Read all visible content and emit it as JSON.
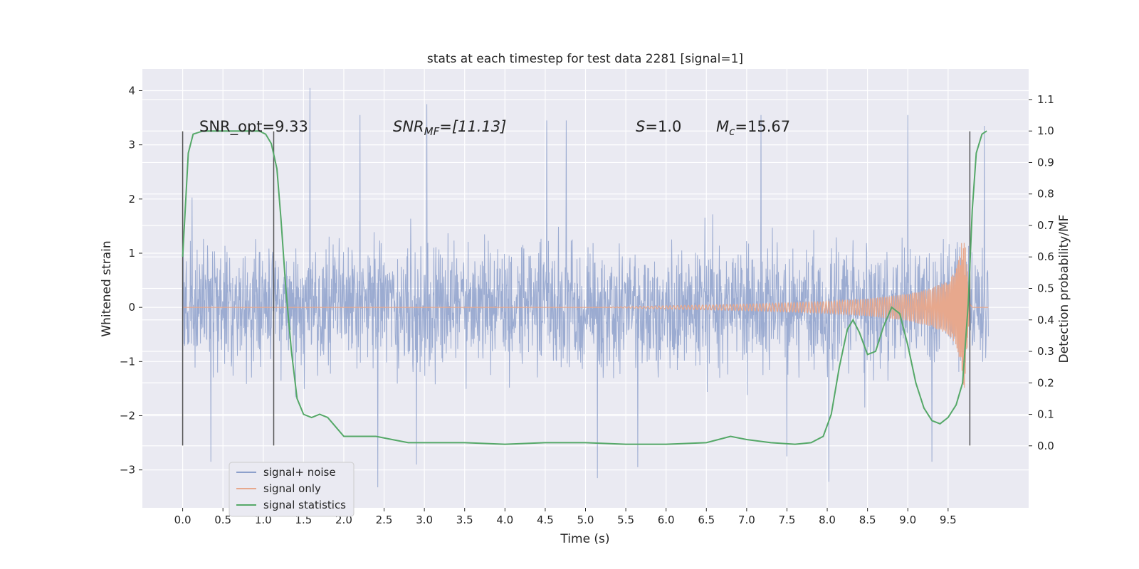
{
  "chart_data": {
    "type": "line",
    "title": "stats at each timestep for test data 2281 [signal=1]",
    "xlabel": "Time (s)",
    "ylabel": "Whitened strain",
    "y2label": "Detection probability/MF",
    "xlim": [
      -0.5,
      10.5
    ],
    "ylim": [
      -3.7,
      4.4
    ],
    "y2lim": [
      -0.197,
      1.197
    ],
    "xticks": [
      0.0,
      0.5,
      1.0,
      1.5,
      2.0,
      2.5,
      3.0,
      3.5,
      4.0,
      4.5,
      5.0,
      5.5,
      6.0,
      6.5,
      7.0,
      7.5,
      8.0,
      8.5,
      9.0,
      9.5
    ],
    "xtick_labels": [
      "0.0",
      "0.5",
      "1.0",
      "1.5",
      "2.0",
      "2.5",
      "3.0",
      "3.5",
      "4.0",
      "4.5",
      "5.0",
      "5.5",
      "6.0",
      "6.5",
      "7.0",
      "7.5",
      "8.0",
      "8.5",
      "9.0",
      "9.5"
    ],
    "yticks": [
      -3,
      -2,
      -1,
      0,
      1,
      2,
      3,
      4
    ],
    "ytick_labels": [
      "−3",
      "−2",
      "−1",
      "0",
      "1",
      "2",
      "3",
      "4"
    ],
    "y2ticks": [
      0.0,
      0.1,
      0.2,
      0.3,
      0.4,
      0.5,
      0.6,
      0.7,
      0.8,
      0.9,
      1.0,
      1.1
    ],
    "y2tick_labels": [
      "0.0",
      "0.1",
      "0.2",
      "0.3",
      "0.4",
      "0.5",
      "0.6",
      "0.7",
      "0.8",
      "0.9",
      "1.0",
      "1.1"
    ],
    "grid": true,
    "legend": {
      "placement": "lower-left",
      "entries": [
        {
          "label": "signal+ noise",
          "color": "#8da0cb"
        },
        {
          "label": "signal only",
          "color": "#e7a88d"
        },
        {
          "label": "signal statistics",
          "color": "#55a868"
        }
      ]
    },
    "annotations": [
      {
        "name": "snr-opt",
        "x": 0.2,
        "y": 3.3,
        "text": "SNR_opt=9.33"
      },
      {
        "name": "snr-mf",
        "x": 2.6,
        "y": 3.3,
        "text_prefix": "SNR",
        "text_sub": "MF",
        "text_suffix": "=[11.13]"
      },
      {
        "name": "s-value",
        "x": 5.6,
        "y": 3.3,
        "text_prefix": "S",
        "text_suffix": "=1.0"
      },
      {
        "name": "mc-value",
        "x": 6.6,
        "y": 3.3,
        "text_prefix": "M",
        "text_sub": "c",
        "text_suffix": "=15.67"
      }
    ],
    "vlines": [
      {
        "x": 0.0,
        "ymin": -2.55,
        "ymax": 3.25
      },
      {
        "x": 1.13,
        "ymin": -2.55,
        "ymax": 3.25
      },
      {
        "x": 9.77,
        "ymin": -2.55,
        "ymax": 3.25
      }
    ],
    "series": [
      {
        "name": "signal+ noise",
        "color": "#8da0cb",
        "axis": "left",
        "x_range": [
          0.0,
          10.0
        ],
        "typical_range": [
          -1.8,
          1.8
        ],
        "peaks": [
          {
            "x": 1.58,
            "y": 4.05
          },
          {
            "x": 3.03,
            "y": 3.75
          },
          {
            "x": 2.2,
            "y": 3.55
          },
          {
            "x": 9.0,
            "y": 3.55
          },
          {
            "x": 7.18,
            "y": 3.55
          },
          {
            "x": 9.95,
            "y": 3.35
          },
          {
            "x": 4.52,
            "y": 3.45
          },
          {
            "x": 4.76,
            "y": 3.45
          },
          {
            "x": 2.42,
            "y": -3.32
          },
          {
            "x": 8.02,
            "y": -3.22
          },
          {
            "x": 5.15,
            "y": -3.15
          },
          {
            "x": 0.35,
            "y": -2.85
          },
          {
            "x": 2.9,
            "y": -2.9
          },
          {
            "x": 5.65,
            "y": -2.95
          },
          {
            "x": 9.3,
            "y": -2.85
          },
          {
            "x": 7.5,
            "y": -2.75
          }
        ]
      },
      {
        "name": "signal only",
        "color": "#e7a88d",
        "axis": "left",
        "x_range": [
          0.0,
          10.0
        ],
        "amplitude_profile": [
          {
            "x": 0.0,
            "amp": 0.0
          },
          {
            "x": 5.2,
            "amp": 0.0
          },
          {
            "x": 6.0,
            "amp": 0.03
          },
          {
            "x": 7.0,
            "amp": 0.06
          },
          {
            "x": 8.0,
            "amp": 0.11
          },
          {
            "x": 8.5,
            "amp": 0.16
          },
          {
            "x": 9.0,
            "amp": 0.25
          },
          {
            "x": 9.3,
            "amp": 0.36
          },
          {
            "x": 9.5,
            "amp": 0.5
          },
          {
            "x": 9.6,
            "amp": 0.7
          },
          {
            "x": 9.65,
            "amp": 1.0
          },
          {
            "x": 9.7,
            "amp": 1.6
          },
          {
            "x": 9.76,
            "amp": 0.2
          },
          {
            "x": 9.8,
            "amp": 0.0
          },
          {
            "x": 10.0,
            "amp": 0.0
          }
        ]
      },
      {
        "name": "signal statistics",
        "color": "#55a868",
        "axis": "right",
        "x": [
          0.0,
          0.07,
          0.13,
          0.25,
          0.4,
          0.6,
          0.8,
          0.95,
          1.03,
          1.1,
          1.17,
          1.22,
          1.28,
          1.35,
          1.42,
          1.5,
          1.6,
          1.7,
          1.8,
          1.9,
          2.0,
          2.2,
          2.4,
          2.6,
          2.8,
          3.0,
          3.5,
          4.0,
          4.5,
          5.0,
          5.5,
          6.0,
          6.5,
          6.8,
          7.0,
          7.3,
          7.6,
          7.8,
          7.95,
          8.05,
          8.15,
          8.25,
          8.32,
          8.4,
          8.5,
          8.6,
          8.7,
          8.8,
          8.9,
          9.0,
          9.1,
          9.2,
          9.3,
          9.4,
          9.5,
          9.6,
          9.68,
          9.75,
          9.8,
          9.85,
          9.92,
          9.98
        ],
        "y": [
          0.6,
          0.93,
          0.99,
          1.0,
          1.0,
          1.0,
          1.0,
          1.0,
          0.99,
          0.96,
          0.88,
          0.72,
          0.5,
          0.3,
          0.15,
          0.1,
          0.09,
          0.1,
          0.09,
          0.06,
          0.03,
          0.03,
          0.03,
          0.02,
          0.01,
          0.01,
          0.01,
          0.005,
          0.01,
          0.01,
          0.005,
          0.005,
          0.01,
          0.03,
          0.02,
          0.01,
          0.005,
          0.01,
          0.03,
          0.1,
          0.25,
          0.37,
          0.4,
          0.36,
          0.29,
          0.3,
          0.38,
          0.44,
          0.42,
          0.32,
          0.2,
          0.12,
          0.08,
          0.07,
          0.09,
          0.13,
          0.2,
          0.45,
          0.75,
          0.93,
          0.99,
          1.0
        ]
      }
    ]
  }
}
